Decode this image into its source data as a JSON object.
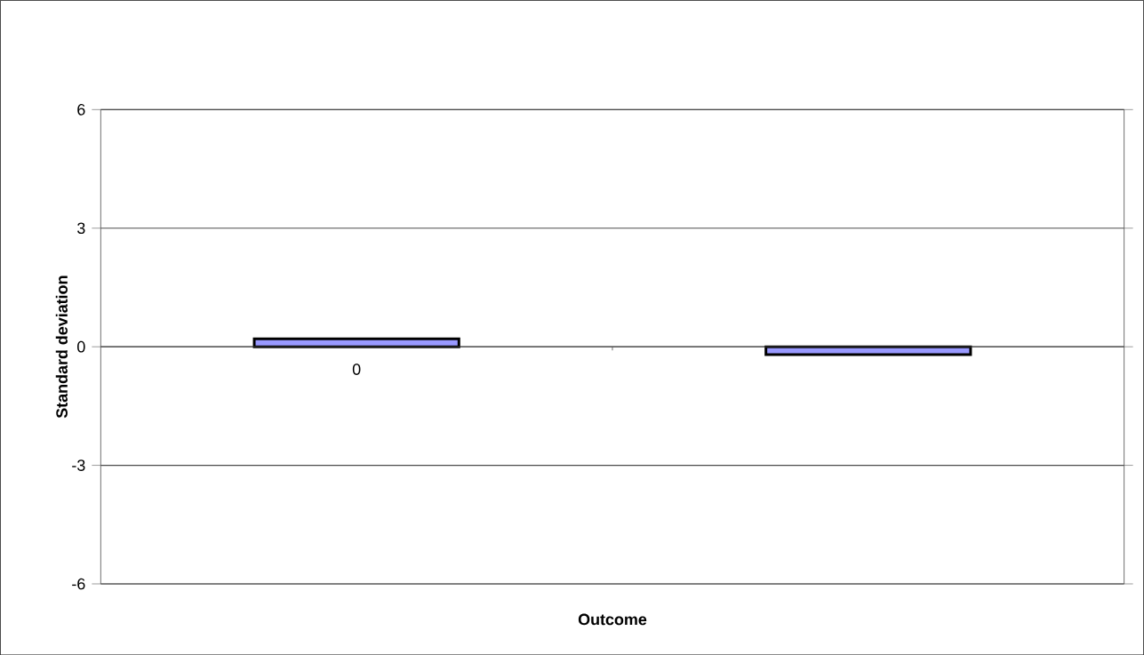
{
  "chart_data": {
    "type": "bar",
    "ylabel": "Standard deviation",
    "xlabel": "Outcome",
    "categories": [
      "0",
      null
    ],
    "values": [
      0.2,
      -0.2
    ],
    "color": "#9999ff",
    "ylim": [
      -6,
      6
    ],
    "yticks": [
      -6,
      -3,
      0,
      3,
      6
    ],
    "grid": "y"
  }
}
